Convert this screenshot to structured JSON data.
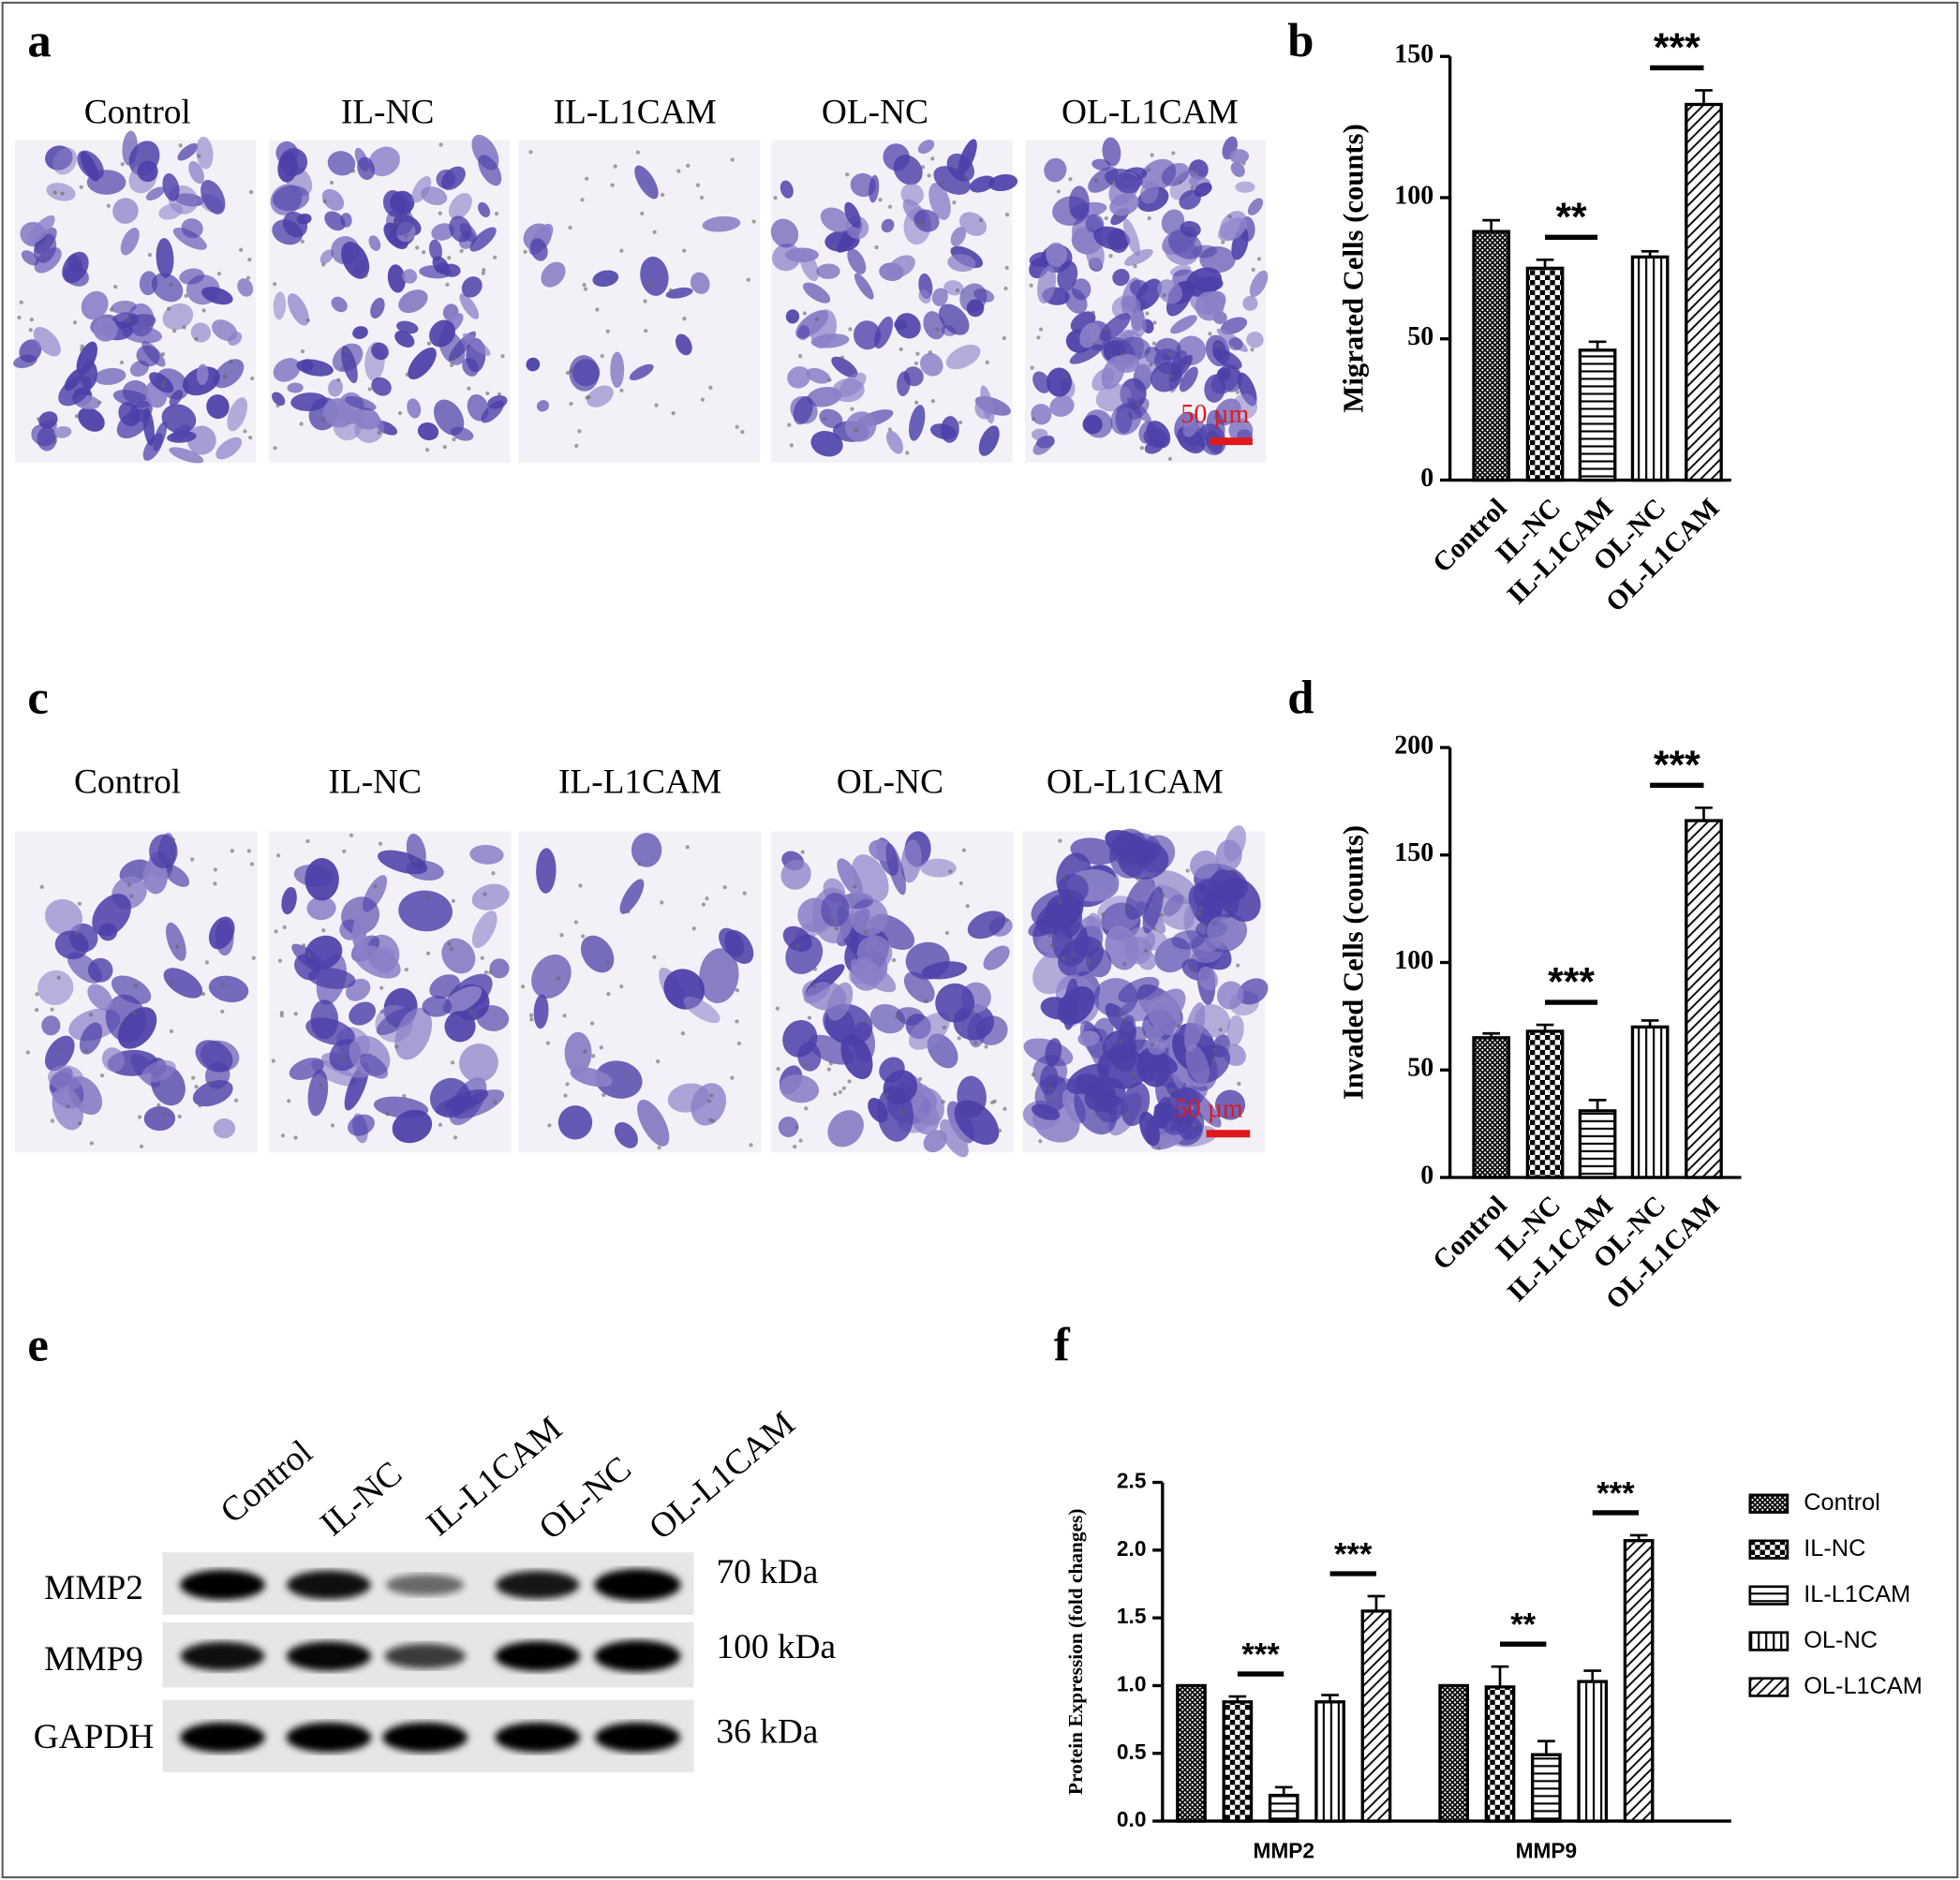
{
  "microscopy": [
    {
      "label": "a",
      "groups": [
        "Control",
        "IL-NC",
        "IL-L1CAM",
        "OL-NC",
        "OL-L1CAM"
      ],
      "scale_bar": "50 µm"
    },
    {
      "label": "c",
      "groups": [
        "Control",
        "IL-NC",
        "IL-L1CAM",
        "OL-NC",
        "OL-L1CAM"
      ],
      "scale_bar": "50 µm"
    }
  ],
  "western_blot": {
    "label": "e",
    "lanes": [
      "Control",
      "IL-NC",
      "IL-L1CAM",
      "OL-NC",
      "OL-L1CAM"
    ],
    "proteins": [
      {
        "name": "MMP2",
        "size": "70 kDa"
      },
      {
        "name": "MMP9",
        "size": "100 kDa"
      },
      {
        "name": "GAPDH",
        "size": "36 kDa"
      }
    ]
  },
  "chart_data": [
    {
      "label": "b",
      "type": "bar",
      "ylabel": "Migrated Cells (counts)",
      "categories": [
        "Control",
        "IL-NC",
        "IL-L1CAM",
        "OL-NC",
        "OL-L1CAM"
      ],
      "values": [
        88,
        75,
        46,
        79,
        133
      ],
      "errors": [
        4,
        3,
        3,
        2,
        5
      ],
      "color": "#000000",
      "ylim": [
        0,
        150
      ],
      "yticks": [
        0,
        50,
        100,
        150
      ],
      "annotations": [
        "**",
        "***"
      ]
    },
    {
      "label": "d",
      "type": "bar",
      "ylabel": "Invaded Cells (counts)",
      "categories": [
        "Control",
        "IL-NC",
        "IL-L1CAM",
        "OL-NC",
        "OL-L1CAM"
      ],
      "values": [
        65,
        68,
        31,
        70,
        166
      ],
      "errors": [
        2,
        3,
        5,
        3,
        6
      ],
      "color": "#000000",
      "ylim": [
        0,
        200
      ],
      "yticks": [
        0,
        50,
        100,
        150,
        200
      ],
      "annotations": [
        "***",
        "***"
      ]
    },
    {
      "label": "f",
      "type": "grouped_bar",
      "ylabel": "Protein Expression (fold changes)",
      "categories": [
        "MMP2",
        "MMP9"
      ],
      "color": "#000000",
      "legend": "right",
      "series": [
        {
          "name": "Control",
          "values": [
            1.0,
            1.0
          ],
          "errors": [
            0,
            0
          ]
        },
        {
          "name": "IL-NC",
          "values": [
            0.88,
            0.99
          ],
          "errors": [
            0.04,
            0.15
          ]
        },
        {
          "name": "IL-L1CAM",
          "values": [
            0.19,
            0.49
          ],
          "errors": [
            0.06,
            0.1
          ]
        },
        {
          "name": "OL-NC",
          "values": [
            0.88,
            1.03
          ],
          "errors": [
            0.05,
            0.08
          ]
        },
        {
          "name": "OL-L1CAM",
          "values": [
            1.55,
            2.07
          ],
          "errors": [
            0.11,
            0.04
          ]
        }
      ],
      "ylim": [
        0,
        2.5
      ],
      "yticks": [
        {
          "value": 0,
          "label": "0.0"
        },
        0.5,
        {
          "value": 1,
          "label": "1.0"
        },
        1.5,
        {
          "value": 2,
          "label": "2.0"
        },
        2.5
      ],
      "annotations": [
        [
          "***",
          "***"
        ],
        [
          "**",
          "***"
        ]
      ]
    }
  ]
}
